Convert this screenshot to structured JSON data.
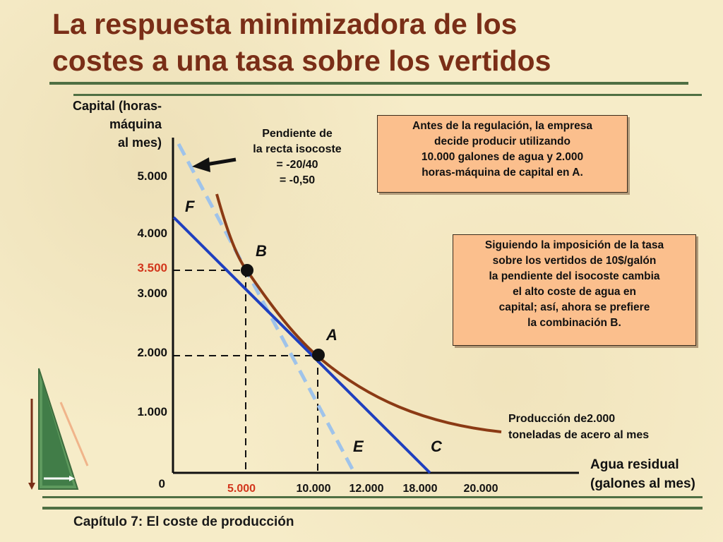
{
  "slide": {
    "title_lines": [
      "La respuesta minimizadora de los",
      "costes a una tasa sobre los vertidos"
    ],
    "footer": "Capítulo 7: El coste de producción",
    "accent_color": "#7a2e17",
    "rule_color": "#4f6f43",
    "box_color": "#fbbf8d"
  },
  "chart_data": {
    "type": "line",
    "ylabel_lines": [
      "Capital (horas-",
      "máquina",
      "al mes)"
    ],
    "xlabel_lines": [
      "Agua residual",
      "(galones al mes)"
    ],
    "origin_label": "0",
    "y_ticks": [
      {
        "value": 5000,
        "label": "5.000"
      },
      {
        "value": 4000,
        "label": "4.000"
      },
      {
        "value": 3500,
        "label": "3.500",
        "highlight": true
      },
      {
        "value": 3000,
        "label": "3.000"
      },
      {
        "value": 2000,
        "label": "2.000"
      },
      {
        "value": 1000,
        "label": "1.000"
      }
    ],
    "x_ticks": [
      {
        "value": 5000,
        "label": "5.000",
        "highlight": true
      },
      {
        "value": 10000,
        "label": "10.000"
      },
      {
        "value": 12000,
        "label": "12.000"
      },
      {
        "value": 18000,
        "label": "18.000"
      },
      {
        "value": 20000,
        "label": "20.000"
      }
    ],
    "points": [
      {
        "name": "A",
        "x": 10000,
        "y": 2000
      },
      {
        "name": "B",
        "x": 5000,
        "y": 3500
      }
    ],
    "line_labels": {
      "F": "F",
      "E": "E",
      "C": "C"
    },
    "isocost_original": {
      "intercepts": {
        "x": 12000,
        "y": 6000
      },
      "style": "dashed",
      "color": "#9fc3ea"
    },
    "isocost_new": {
      "intercepts": {
        "x": 18000,
        "y": 4500
      },
      "style": "solid",
      "color": "#1f3fbf"
    },
    "isoquant": {
      "color": "#8b3a14",
      "label_lines": [
        "Producción de2.000",
        "toneladas de acero al mes"
      ]
    },
    "slope_note_lines": [
      "Pendiente de",
      "la recta isocoste",
      "= -20/40",
      "= -0,50"
    ],
    "box1_lines": [
      "Antes de la regulación, la empresa",
      "decide producir utilizando",
      "10.000 galones de agua y 2.000",
      "horas-máquina de capital en A."
    ],
    "box2_lines": [
      "Siguiendo la imposición de la tasa",
      "sobre los vertidos de 10$/galón",
      "la pendiente del isocoste cambia",
      "el alto coste de agua en",
      "capital; así, ahora se prefiere",
      "la combinación B."
    ]
  }
}
